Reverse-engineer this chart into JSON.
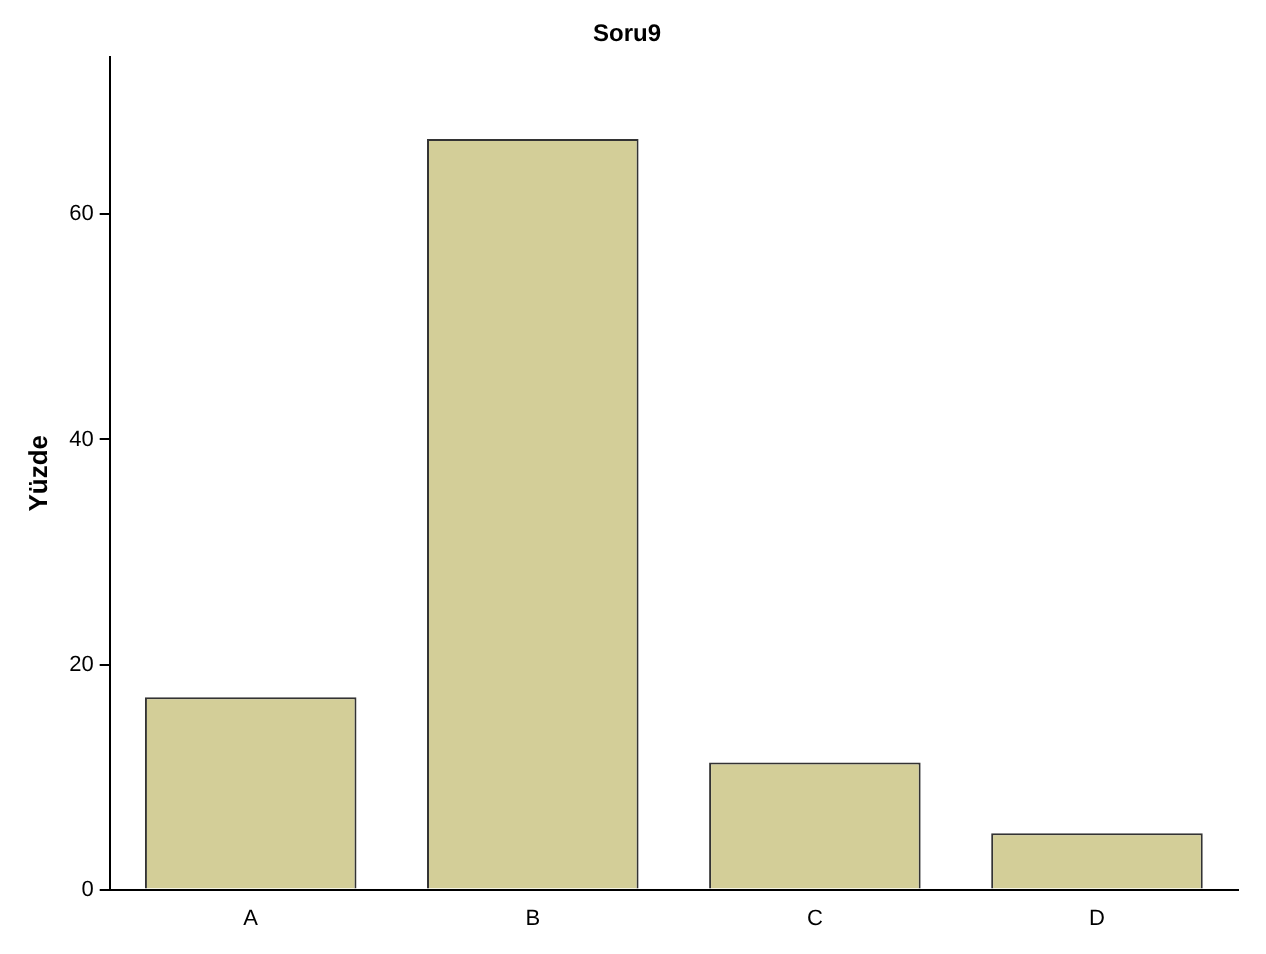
{
  "chart_data": {
    "type": "bar",
    "title": "Soru9",
    "ylabel": "Yüzde",
    "categories": [
      "A",
      "B",
      "C",
      "D"
    ],
    "values": [
      17.1,
      66.7,
      11.3,
      5.0
    ],
    "color": "#d3ce98",
    "ylim": [
      0,
      74
    ],
    "yticks": [
      0,
      20,
      40,
      60
    ],
    "grid": false,
    "legend": false
  }
}
